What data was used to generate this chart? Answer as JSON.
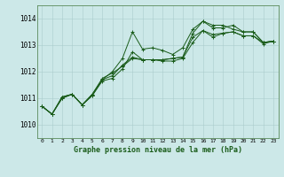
{
  "background_color": "#cce8e8",
  "grid_color": "#aacccc",
  "line_color": "#1a5c1a",
  "marker_color": "#1a5c1a",
  "title": "Graphe pression niveau de la mer (hPa)",
  "xlim": [
    -0.5,
    23.5
  ],
  "ylim": [
    1009.5,
    1014.5
  ],
  "yticks": [
    1010,
    1011,
    1012,
    1013,
    1014
  ],
  "xticks": [
    0,
    1,
    2,
    3,
    4,
    5,
    6,
    7,
    8,
    9,
    10,
    11,
    12,
    13,
    14,
    15,
    16,
    17,
    18,
    19,
    20,
    21,
    22,
    23
  ],
  "series": [
    [
      1010.7,
      1010.4,
      1011.0,
      1011.15,
      1010.75,
      1011.1,
      1011.7,
      1011.85,
      1012.25,
      1012.55,
      1012.45,
      1012.45,
      1012.45,
      1012.5,
      1012.55,
      1013.3,
      1013.55,
      1013.4,
      1013.45,
      1013.5,
      1013.35,
      1013.35,
      1013.1,
      1013.15
    ],
    [
      1010.7,
      1010.4,
      1011.0,
      1011.15,
      1010.75,
      1011.1,
      1011.65,
      1011.75,
      1012.1,
      1012.75,
      1012.45,
      1012.45,
      1012.45,
      1012.5,
      1012.55,
      1013.45,
      1013.9,
      1013.75,
      1013.75,
      1013.6,
      1013.5,
      1013.5,
      1013.1,
      1013.15
    ],
    [
      1010.7,
      1010.4,
      1011.05,
      1011.15,
      1010.75,
      1011.15,
      1011.7,
      1012.0,
      1012.5,
      1013.5,
      1012.85,
      1012.9,
      1012.8,
      1012.65,
      1012.9,
      1013.6,
      1013.9,
      1013.65,
      1013.65,
      1013.75,
      1013.5,
      1013.5,
      1013.1,
      1013.15
    ],
    [
      1010.7,
      1010.4,
      1011.05,
      1011.15,
      1010.75,
      1011.15,
      1011.75,
      1011.95,
      1012.2,
      1012.5,
      1012.45,
      1012.45,
      1012.4,
      1012.4,
      1012.5,
      1013.1,
      1013.55,
      1013.3,
      1013.45,
      1013.5,
      1013.35,
      1013.35,
      1013.05,
      1013.15
    ]
  ]
}
